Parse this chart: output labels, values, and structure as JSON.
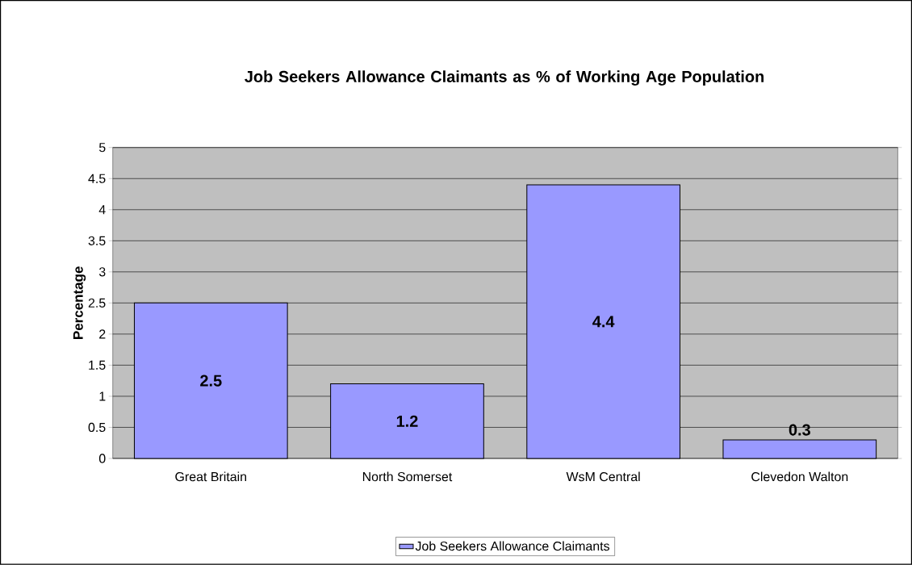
{
  "chart_data": {
    "type": "bar",
    "title": "Job Seekers Allowance Claimants as % of Working Age Population",
    "ylabel": "Percentage",
    "categories": [
      "Great Britain",
      "North Somerset",
      "WsM Central",
      "Clevedon Walton"
    ],
    "series": [
      {
        "name": "Job Seekers Allowance Claimants",
        "color": "#9999ff",
        "values": [
          2.5,
          1.2,
          4.4,
          0.3
        ],
        "value_labels": [
          "2.5",
          "1.2",
          "4.4",
          "0.3"
        ]
      }
    ],
    "ylim": [
      0,
      5
    ],
    "yticks": [
      0,
      0.5,
      1,
      1.5,
      2,
      2.5,
      3,
      3.5,
      4,
      4.5,
      5
    ],
    "grid": "y",
    "legend": "bottom"
  }
}
